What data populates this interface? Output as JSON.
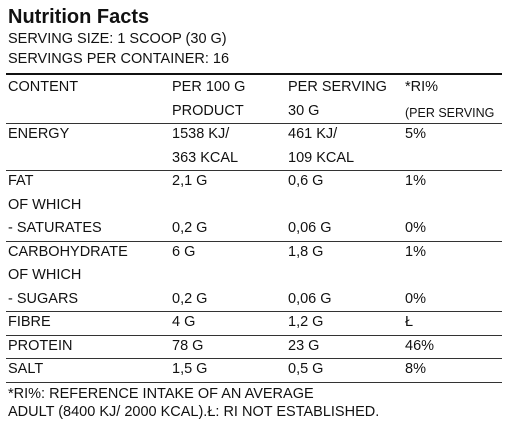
{
  "header": {
    "title": "Nutrition Facts",
    "serving_size": "SERVING SIZE: 1 SCOOP (30 G)",
    "servings_per_container": "SERVINGS PER CONTAINER: 16"
  },
  "table": {
    "columns": [
      [
        "CONTENT"
      ],
      [
        "PER 100 G",
        "PRODUCT"
      ],
      [
        "PER SERVING",
        "30 G"
      ],
      [
        "*RI%",
        "(PER SERVING"
      ]
    ],
    "rows": [
      [
        [
          "ENERGY",
          null
        ],
        [
          "1538 KJ/",
          "363 KCAL"
        ],
        [
          "461 KJ/",
          "109 KCAL"
        ],
        [
          "5%",
          null
        ]
      ],
      [
        [
          "FAT",
          "OF WHICH",
          "- SATURATES"
        ],
        [
          "2,1 G",
          null,
          "0,2 G"
        ],
        [
          "0,6 G",
          null,
          "0,06 G"
        ],
        [
          "1%",
          null,
          "0%"
        ]
      ],
      [
        [
          "CARBOHYDRATE",
          "OF WHICH",
          "- SUGARS"
        ],
        [
          "6 G",
          null,
          "0,2 G"
        ],
        [
          "1,8 G",
          null,
          "0,06 G"
        ],
        [
          "1%",
          null,
          "0%"
        ]
      ],
      [
        [
          "FIBRE"
        ],
        [
          "4 G"
        ],
        [
          "1,2 G"
        ],
        [
          "Ł"
        ]
      ],
      [
        [
          "PROTEIN"
        ],
        [
          "78 G"
        ],
        [
          "23 G"
        ],
        [
          "46%"
        ]
      ],
      [
        [
          "SALT"
        ],
        [
          "1,5 G"
        ],
        [
          "0,5 G"
        ],
        [
          "8%"
        ]
      ]
    ]
  },
  "footer": [
    "*RI%: REFERENCE INTAKE OF AN AVERAGE",
    "ADULT (8400 KJ/ 2000 KCAL).Ł: RI NOT ESTABLISHED."
  ]
}
